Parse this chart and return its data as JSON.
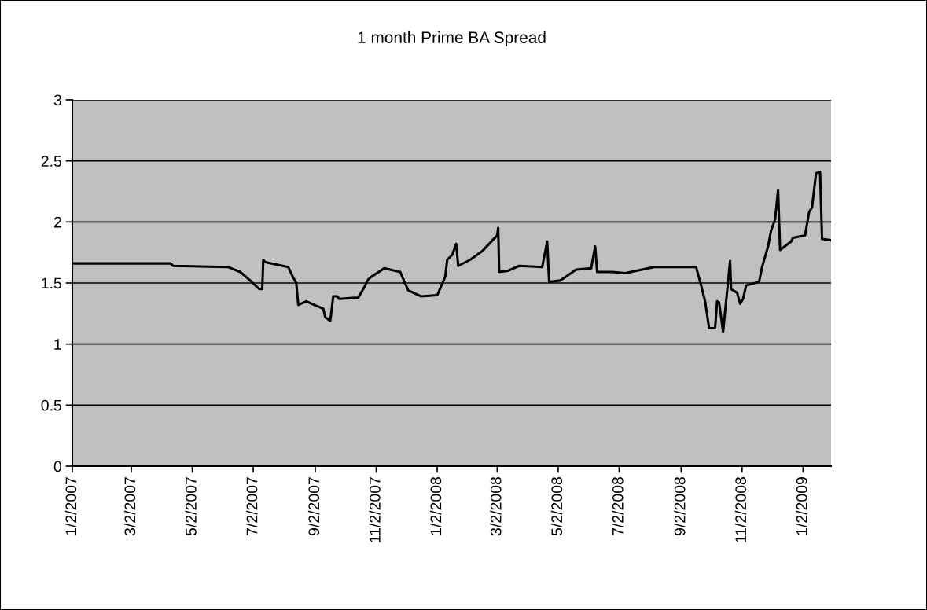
{
  "chart_data": {
    "type": "line",
    "title": "1 month Prime BA Spread",
    "x": [
      "2007-01-02",
      "2007-04-10",
      "2007-04-13",
      "2007-06-07",
      "2007-06-19",
      "2007-06-29",
      "2007-07-08",
      "2007-07-11",
      "2007-07-12",
      "2007-07-14",
      "2007-08-06",
      "2007-08-10",
      "2007-08-14",
      "2007-08-16",
      "2007-08-24",
      "2007-09-01",
      "2007-09-10",
      "2007-09-12",
      "2007-09-17",
      "2007-09-20",
      "2007-09-24",
      "2007-09-26",
      "2007-10-15",
      "2007-10-20",
      "2007-10-25",
      "2007-10-28",
      "2007-11-10",
      "2007-11-26",
      "2007-12-04",
      "2007-12-17",
      "2008-01-02",
      "2008-01-10",
      "2008-01-12",
      "2008-01-17",
      "2008-01-21",
      "2008-01-23",
      "2008-02-04",
      "2008-02-16",
      "2008-03-02",
      "2008-03-03",
      "2008-03-04",
      "2008-03-13",
      "2008-03-24",
      "2008-04-16",
      "2008-04-21",
      "2008-04-23",
      "2008-05-04",
      "2008-05-20",
      "2008-06-04",
      "2008-06-08",
      "2008-06-10",
      "2008-06-25",
      "2008-07-08",
      "2008-08-06",
      "2008-09-01",
      "2008-09-17",
      "2008-09-22",
      "2008-09-26",
      "2008-09-30",
      "2008-10-06",
      "2008-10-08",
      "2008-10-10",
      "2008-10-14",
      "2008-10-21",
      "2008-10-22",
      "2008-10-28",
      "2008-10-31",
      "2008-11-03",
      "2008-11-06",
      "2008-11-19",
      "2008-11-22",
      "2008-11-28",
      "2008-12-01",
      "2008-12-05",
      "2008-12-08",
      "2008-12-10",
      "2008-12-21",
      "2008-12-23",
      "2009-01-04",
      "2009-01-08",
      "2009-01-11",
      "2009-01-15",
      "2009-01-19",
      "2009-01-21",
      "2009-01-30"
    ],
    "series": [
      {
        "color": "#000000",
        "values": [
          1.66,
          1.66,
          1.64,
          1.63,
          1.59,
          1.52,
          1.45,
          1.45,
          1.69,
          1.67,
          1.63,
          1.56,
          1.5,
          1.32,
          1.35,
          1.32,
          1.29,
          1.22,
          1.19,
          1.39,
          1.39,
          1.37,
          1.38,
          1.45,
          1.53,
          1.55,
          1.62,
          1.59,
          1.44,
          1.39,
          1.4,
          1.55,
          1.69,
          1.73,
          1.82,
          1.64,
          1.69,
          1.76,
          1.89,
          1.95,
          1.59,
          1.6,
          1.64,
          1.63,
          1.84,
          1.51,
          1.52,
          1.61,
          1.62,
          1.8,
          1.59,
          1.59,
          1.58,
          1.63,
          1.63,
          1.63,
          1.48,
          1.35,
          1.13,
          1.13,
          1.35,
          1.34,
          1.1,
          1.68,
          1.45,
          1.42,
          1.33,
          1.37,
          1.48,
          1.51,
          1.63,
          1.8,
          1.93,
          2.02,
          2.26,
          1.77,
          1.84,
          1.87,
          1.89,
          2.08,
          2.12,
          2.4,
          2.41,
          1.86,
          1.85
        ]
      }
    ],
    "xlim": [
      "2007-01-02",
      "2009-01-30"
    ],
    "xticks": [
      {
        "value": "2007-01-02",
        "label": "1/2/2007"
      },
      {
        "value": "2007-03-02",
        "label": "3/2/2007"
      },
      {
        "value": "2007-05-02",
        "label": "5/2/2007"
      },
      {
        "value": "2007-07-02",
        "label": "7/2/2007"
      },
      {
        "value": "2007-09-02",
        "label": "9/2/2007"
      },
      {
        "value": "2007-11-02",
        "label": "11/2/2007"
      },
      {
        "value": "2008-01-02",
        "label": "1/2/2008"
      },
      {
        "value": "2008-03-02",
        "label": "3/2/2008"
      },
      {
        "value": "2008-05-02",
        "label": "5/2/2008"
      },
      {
        "value": "2008-07-02",
        "label": "7/2/2008"
      },
      {
        "value": "2008-09-02",
        "label": "9/2/2008"
      },
      {
        "value": "2008-11-02",
        "label": "11/2/2008"
      },
      {
        "value": "2009-01-02",
        "label": "1/2/2009"
      }
    ],
    "ylim": [
      0,
      3
    ],
    "yticks": [
      0,
      0.5,
      1,
      1.5,
      2,
      2.5,
      3
    ],
    "grid": "y",
    "legend": false,
    "marker": "none",
    "line_style": "solid"
  }
}
